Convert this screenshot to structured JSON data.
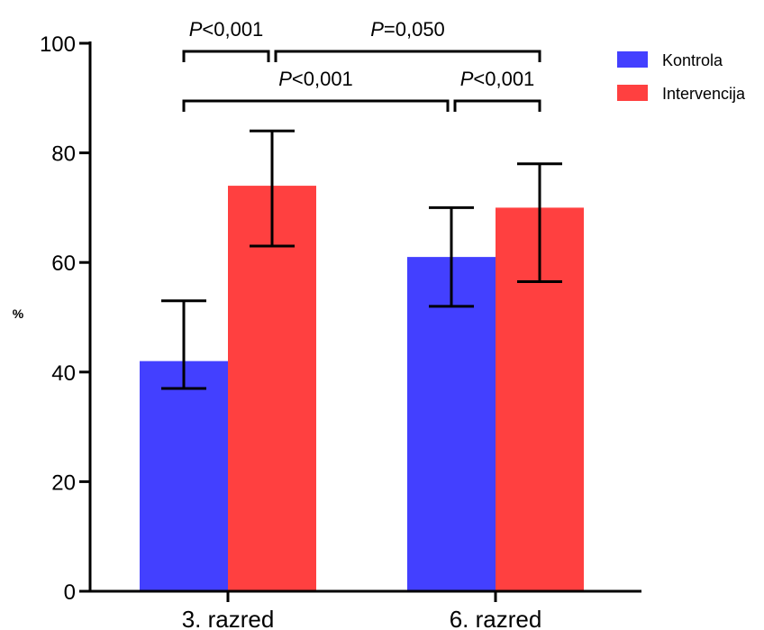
{
  "chart_data": {
    "type": "bar",
    "categories": [
      "3. razred",
      "6. razred"
    ],
    "series": [
      {
        "name": "Kontrola",
        "color": "#4340FF",
        "values": [
          42,
          61
        ],
        "error_low": [
          37,
          52
        ],
        "error_high": [
          53,
          70
        ]
      },
      {
        "name": "Intervencija",
        "color": "#FF4040",
        "values": [
          74,
          70
        ],
        "error_low": [
          63,
          56.5
        ],
        "error_high": [
          84,
          78
        ]
      }
    ],
    "xlabel": "",
    "ylabel": "%",
    "ylim": [
      0,
      100
    ],
    "yticks": [
      0,
      20,
      40,
      60,
      80,
      100
    ],
    "grid": false,
    "legend": "top-right",
    "significance": [
      {
        "from": {
          "category": 0,
          "series": 0
        },
        "to": {
          "category": 0,
          "series": 1
        },
        "level": 1,
        "p_italic": "P",
        "p_text": "<0,001"
      },
      {
        "from": {
          "category": 0,
          "series": 1
        },
        "to": {
          "category": 1,
          "series": 1
        },
        "level": 1,
        "p_italic": "P",
        "p_text": "=0,050"
      },
      {
        "from": {
          "category": 0,
          "series": 0
        },
        "to": {
          "category": 1,
          "series": 0
        },
        "level": 0,
        "p_italic": "P",
        "p_text": "<0,001"
      },
      {
        "from": {
          "category": 1,
          "series": 0
        },
        "to": {
          "category": 1,
          "series": 1
        },
        "level": 0,
        "p_italic": "P",
        "p_text": "<0,001"
      }
    ]
  }
}
